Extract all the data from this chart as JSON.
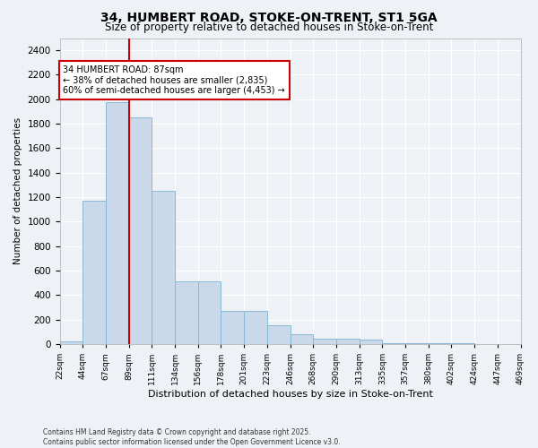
{
  "title": "34, HUMBERT ROAD, STOKE-ON-TRENT, ST1 5GA",
  "subtitle": "Size of property relative to detached houses in Stoke-on-Trent",
  "xlabel": "Distribution of detached houses by size in Stoke-on-Trent",
  "ylabel": "Number of detached properties",
  "bar_values": [
    25,
    1175,
    1975,
    1850,
    1250,
    515,
    515,
    270,
    270,
    155,
    80,
    45,
    45,
    35,
    10,
    5,
    5,
    5,
    2,
    2
  ],
  "categories": [
    "22sqm",
    "44sqm",
    "67sqm",
    "89sqm",
    "111sqm",
    "134sqm",
    "156sqm",
    "178sqm",
    "201sqm",
    "223sqm",
    "246sqm",
    "268sqm",
    "290sqm",
    "313sqm",
    "335sqm",
    "357sqm",
    "380sqm",
    "402sqm",
    "424sqm",
    "447sqm",
    "469sqm"
  ],
  "bar_color": "#c9d9ea",
  "bar_edge_color": "#8ab8d4",
  "vline_x": 3,
  "vline_color": "#cc0000",
  "annotation_text": "34 HUMBERT ROAD: 87sqm\n← 38% of detached houses are smaller (2,835)\n60% of semi-detached houses are larger (4,453) →",
  "annotation_box_color": "#ffffff",
  "annotation_box_edge": "#cc0000",
  "ylim": [
    0,
    2500
  ],
  "yticks": [
    0,
    200,
    400,
    600,
    800,
    1000,
    1200,
    1400,
    1600,
    1800,
    2000,
    2200,
    2400
  ],
  "footer_line1": "Contains HM Land Registry data © Crown copyright and database right 2025.",
  "footer_line2": "Contains public sector information licensed under the Open Government Licence v3.0.",
  "bg_color": "#eef2f7",
  "plot_bg_color": "#eef2f7"
}
